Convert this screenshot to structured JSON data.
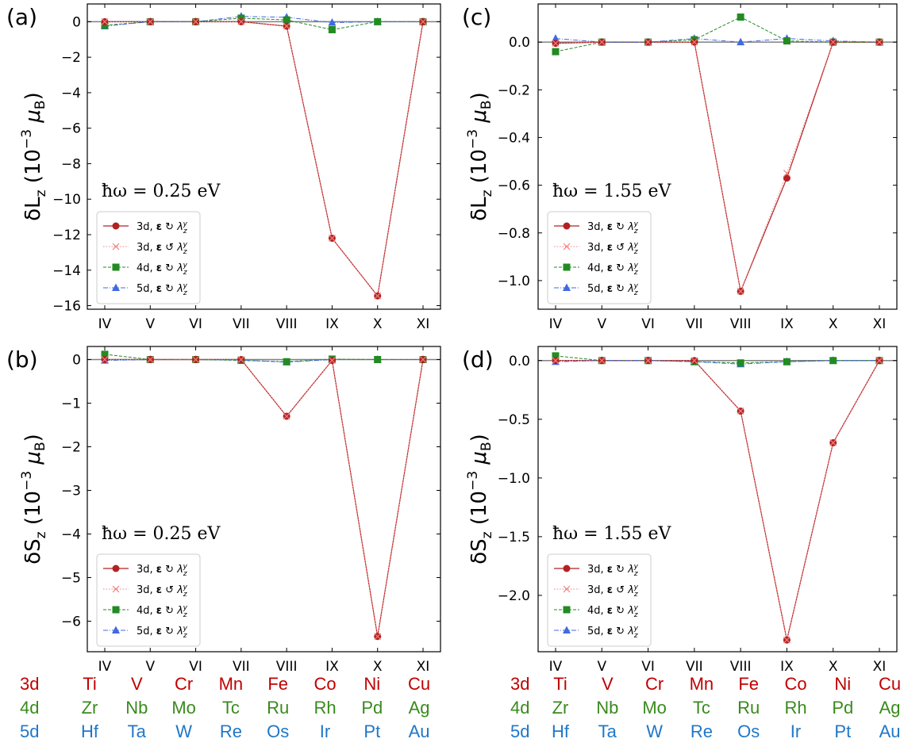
{
  "colors": {
    "d3": "#b22222",
    "d3_alt": "#f08080",
    "d4": "#228b22",
    "d5": "#4169e1",
    "zero_line": "#808080"
  },
  "categories": [
    "IV",
    "V",
    "VI",
    "VII",
    "VIII",
    "IX",
    "X",
    "XI"
  ],
  "legend_labels": [
    "3d, ε ↻ λzy",
    "3d, ε ↺ λzy",
    "4d, ε ↻ λzy",
    "5d, ε ↻ λzy"
  ],
  "chart_data": [
    {
      "id": "a",
      "panel_label": "(a)",
      "type": "line",
      "ylabel": "δLz  (10⁻³ μB)",
      "annotation": "ħω = 0.25 eV",
      "ylim": [
        -16.2,
        1.0
      ],
      "yticks": [
        0,
        -2,
        -4,
        -6,
        -8,
        -10,
        -12,
        -14,
        -16
      ],
      "ytick_labels": [
        "0",
        "−2",
        "−4",
        "−6",
        "−8",
        "−10",
        "−12",
        "−14",
        "−16"
      ],
      "categories": [
        "IV",
        "V",
        "VI",
        "VII",
        "VIII",
        "IX",
        "X",
        "XI"
      ],
      "series": [
        {
          "name": "3d, ε ↻ λzy",
          "values": [
            0,
            0,
            0,
            0,
            -0.25,
            -12.2,
            -15.45,
            0
          ]
        },
        {
          "name": "3d, ε ↺ λzy",
          "values": [
            0,
            0,
            0,
            0,
            -0.25,
            -12.2,
            -15.45,
            0
          ]
        },
        {
          "name": "4d, ε ↻ λzy",
          "values": [
            -0.2,
            0,
            0,
            0.2,
            0.1,
            -0.45,
            0,
            0
          ]
        },
        {
          "name": "5d, ε ↻ λzy",
          "values": [
            -0.25,
            0,
            0,
            0.3,
            0.25,
            -0.05,
            0,
            0
          ]
        }
      ]
    },
    {
      "id": "b",
      "panel_label": "(b)",
      "type": "line",
      "ylabel": "δSz  (10⁻³ μB)",
      "annotation": "ħω = 0.25 eV",
      "ylim": [
        -6.7,
        0.3
      ],
      "yticks": [
        0,
        -1,
        -2,
        -3,
        -4,
        -5,
        -6
      ],
      "ytick_labels": [
        "0",
        "−1",
        "−2",
        "−3",
        "−4",
        "−5",
        "−6"
      ],
      "categories": [
        "IV",
        "V",
        "VI",
        "VII",
        "VIII",
        "IX",
        "X",
        "XI"
      ],
      "series": [
        {
          "name": "3d, ε ↻ λzy",
          "values": [
            0,
            0,
            0,
            0,
            -1.3,
            -0.02,
            -6.35,
            0
          ]
        },
        {
          "name": "3d, ε ↺ λzy",
          "values": [
            0,
            0,
            0,
            0,
            -1.3,
            -0.02,
            -6.35,
            0
          ]
        },
        {
          "name": "4d, ε ↻ λzy",
          "values": [
            0.12,
            0,
            0,
            -0.02,
            -0.05,
            0.01,
            0,
            0
          ]
        },
        {
          "name": "5d, ε ↻ λzy",
          "values": [
            -0.02,
            0,
            0,
            -0.01,
            -0.06,
            0,
            0,
            0
          ]
        }
      ]
    },
    {
      "id": "c",
      "panel_label": "(c)",
      "type": "line",
      "ylabel": "δLz  (10⁻³ μB)",
      "annotation": "ħω = 1.55 eV",
      "ylim": [
        -1.12,
        0.16
      ],
      "yticks": [
        0,
        -0.2,
        -0.4,
        -0.6,
        -0.8,
        -1.0
      ],
      "ytick_labels": [
        "0.0",
        "−0.2",
        "−0.4",
        "−0.6",
        "−0.8",
        "−1.0"
      ],
      "categories": [
        "IV",
        "V",
        "VI",
        "VII",
        "VIII",
        "IX",
        "X",
        "XI"
      ],
      "series": [
        {
          "name": "3d, ε ↻ λzy",
          "values": [
            -0.005,
            0,
            0,
            0,
            -1.045,
            -0.57,
            0,
            0
          ]
        },
        {
          "name": "3d, ε ↺ λzy",
          "values": [
            -0.005,
            0,
            0,
            0,
            -1.045,
            -0.55,
            0,
            0
          ]
        },
        {
          "name": "4d, ε ↻ λzy",
          "values": [
            -0.04,
            0,
            0,
            0.01,
            0.105,
            0.005,
            0,
            0
          ]
        },
        {
          "name": "5d, ε ↻ λzy",
          "values": [
            0.015,
            0,
            0,
            0.015,
            0,
            0.015,
            0.005,
            0
          ]
        }
      ]
    },
    {
      "id": "d",
      "panel_label": "(d)",
      "type": "line",
      "ylabel": "δSz  (10⁻³ μB)",
      "annotation": "ħω = 1.55 eV",
      "ylim": [
        -2.48,
        0.12
      ],
      "yticks": [
        0,
        -0.5,
        -1.0,
        -1.5,
        -2.0
      ],
      "ytick_labels": [
        "0.0",
        "−0.5",
        "−1.0",
        "−1.5",
        "−2.0"
      ],
      "categories": [
        "IV",
        "V",
        "VI",
        "VII",
        "VIII",
        "IX",
        "X",
        "XI"
      ],
      "series": [
        {
          "name": "3d, ε ↻ λzy",
          "values": [
            0,
            0,
            0,
            0,
            -0.43,
            -2.38,
            -0.7,
            0
          ]
        },
        {
          "name": "3d, ε ↺ λzy",
          "values": [
            0,
            0,
            0,
            0,
            -0.43,
            -2.38,
            -0.7,
            0
          ]
        },
        {
          "name": "4d, ε ↻ λzy",
          "values": [
            0.04,
            0,
            0,
            -0.01,
            -0.02,
            -0.01,
            0,
            0
          ]
        },
        {
          "name": "5d, ε ↻ λzy",
          "values": [
            -0.01,
            0,
            0,
            -0.01,
            -0.03,
            -0.01,
            0,
            0
          ]
        }
      ]
    }
  ],
  "elements_table": [
    {
      "row": "3d",
      "items": [
        "Ti",
        "V",
        "Cr",
        "Mn",
        "Fe",
        "Co",
        "Ni",
        "Cu"
      ]
    },
    {
      "row": "4d",
      "items": [
        "Zr",
        "Nb",
        "Mo",
        "Tc",
        "Ru",
        "Rh",
        "Pd",
        "Ag"
      ]
    },
    {
      "row": "5d",
      "items": [
        "Hf",
        "Ta",
        "W",
        "Re",
        "Os",
        "Ir",
        "Pt",
        "Au"
      ]
    }
  ]
}
